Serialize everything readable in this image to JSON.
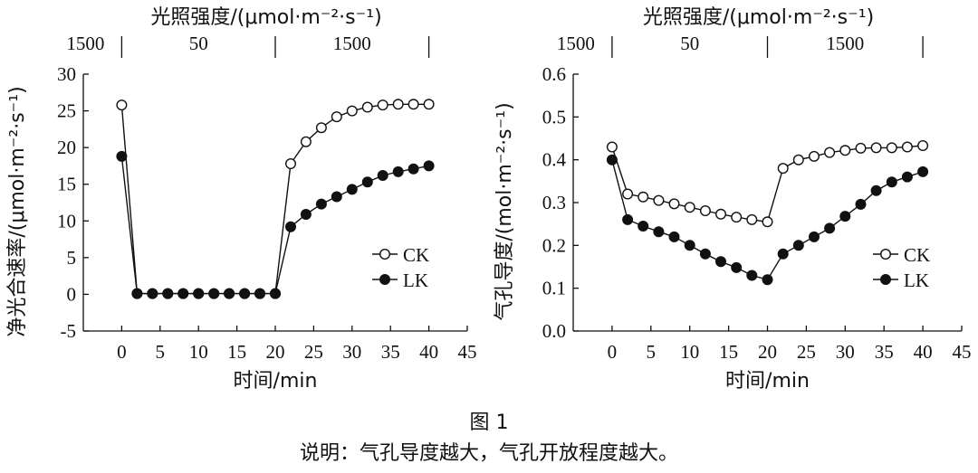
{
  "figure": {
    "caption": "图 1",
    "note": "说明：气孔导度越大，气孔开放程度越大。"
  },
  "chart_data": [
    {
      "type": "line",
      "top_axis": {
        "label": "光照强度/(μmol·m⁻²·s⁻¹)",
        "labels": [
          "1500",
          "50",
          "1500"
        ],
        "dividers": [
          0,
          20,
          40
        ]
      },
      "xlabel": "时间/min",
      "ylabel": "净光合速率/(μmol·m⁻²·s⁻¹)",
      "xlim": [
        -5,
        45
      ],
      "ylim": [
        -5,
        30
      ],
      "xticks": [
        "0",
        "5",
        "10",
        "15",
        "20",
        "25",
        "30",
        "35",
        "40",
        "45"
      ],
      "yticks": [
        "-5",
        "0",
        "5",
        "10",
        "15",
        "20",
        "25",
        "30"
      ],
      "legend": "right",
      "series": [
        {
          "name": "CK",
          "marker": "open",
          "x": [
            0,
            2,
            4,
            6,
            8,
            10,
            12,
            14,
            16,
            18,
            20,
            22,
            24,
            26,
            28,
            30,
            32,
            34,
            36,
            38,
            40
          ],
          "y": [
            25.8,
            0.1,
            0.1,
            0.1,
            0.1,
            0.1,
            0.1,
            0.1,
            0.1,
            0.1,
            0.1,
            17.8,
            20.8,
            22.7,
            24.2,
            25.0,
            25.5,
            25.8,
            25.9,
            25.9,
            25.9
          ]
        },
        {
          "name": "LK",
          "marker": "filled",
          "x": [
            0,
            2,
            4,
            6,
            8,
            10,
            12,
            14,
            16,
            18,
            20,
            22,
            24,
            26,
            28,
            30,
            32,
            34,
            36,
            38,
            40
          ],
          "y": [
            18.8,
            0.1,
            0.1,
            0.1,
            0.1,
            0.1,
            0.1,
            0.1,
            0.1,
            0.1,
            0.1,
            9.2,
            10.9,
            12.3,
            13.3,
            14.3,
            15.3,
            16.2,
            16.7,
            17.1,
            17.5
          ]
        }
      ]
    },
    {
      "type": "line",
      "top_axis": {
        "label": "光照强度/(μmol·m⁻²·s⁻¹)",
        "labels": [
          "1500",
          "50",
          "1500"
        ],
        "dividers": [
          0,
          20,
          40
        ]
      },
      "xlabel": "时间/min",
      "ylabel": "气孔导度/(mol·m⁻²·s⁻¹)",
      "xlim": [
        -5,
        45
      ],
      "ylim": [
        0,
        0.6
      ],
      "xticks": [
        "0",
        "5",
        "10",
        "15",
        "20",
        "25",
        "30",
        "35",
        "40",
        "45"
      ],
      "yticks": [
        "0.0",
        "0.1",
        "0.2",
        "0.3",
        "0.4",
        "0.5",
        "0.6"
      ],
      "legend": "right",
      "series": [
        {
          "name": "CK",
          "marker": "open",
          "x": [
            0,
            2,
            4,
            6,
            8,
            10,
            12,
            14,
            16,
            18,
            20,
            22,
            24,
            26,
            28,
            30,
            32,
            34,
            36,
            38,
            40
          ],
          "y": [
            0.43,
            0.32,
            0.313,
            0.305,
            0.297,
            0.289,
            0.281,
            0.273,
            0.266,
            0.26,
            0.255,
            0.38,
            0.4,
            0.408,
            0.417,
            0.422,
            0.427,
            0.428,
            0.428,
            0.43,
            0.433
          ]
        },
        {
          "name": "LK",
          "marker": "filled",
          "x": [
            0,
            2,
            4,
            6,
            8,
            10,
            12,
            14,
            16,
            18,
            20,
            22,
            24,
            26,
            28,
            30,
            32,
            34,
            36,
            38,
            40
          ],
          "y": [
            0.4,
            0.26,
            0.245,
            0.232,
            0.22,
            0.2,
            0.18,
            0.162,
            0.148,
            0.13,
            0.12,
            0.18,
            0.2,
            0.22,
            0.24,
            0.268,
            0.296,
            0.328,
            0.348,
            0.36,
            0.372
          ]
        }
      ]
    }
  ]
}
